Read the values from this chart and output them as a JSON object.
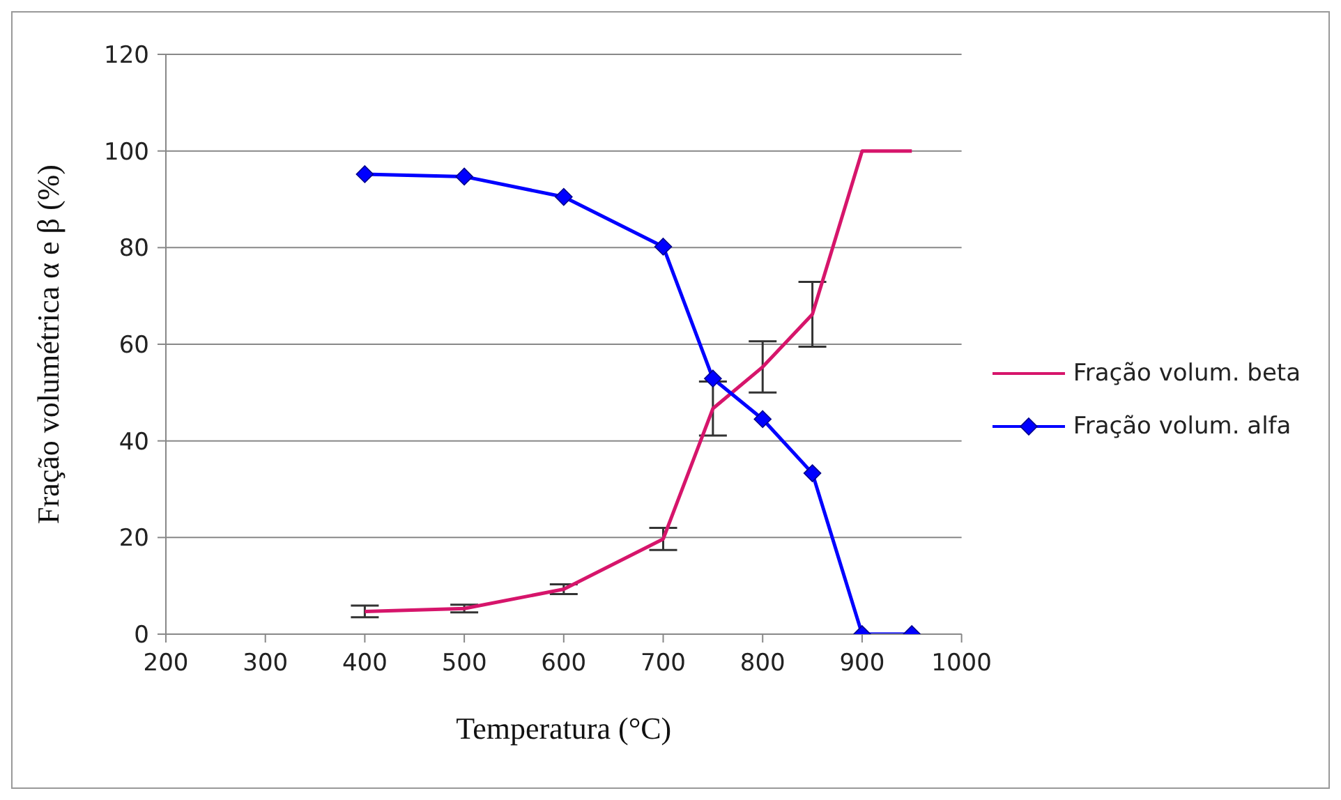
{
  "chart_data": {
    "type": "line",
    "xlabel": "Temperatura (°C)",
    "ylabel": "Fração volumétrica α e β (%)",
    "x": [
      400,
      500,
      600,
      700,
      750,
      800,
      850,
      900,
      950
    ],
    "series": [
      {
        "name": "Fração volum. beta",
        "color": "#d6156b",
        "marker": "none",
        "values": [
          4.7,
          5.3,
          9.3,
          19.7,
          46.7,
          55.3,
          66.2,
          100,
          100
        ],
        "errors": [
          1.2,
          0.8,
          1,
          2.3,
          5.6,
          5.3,
          6.7,
          null,
          null
        ]
      },
      {
        "name": "Fração volum. alfa",
        "color": "#0000ff",
        "marker": "diamond",
        "values": [
          95.2,
          94.7,
          90.5,
          80.2,
          52.9,
          44.5,
          33.3,
          0,
          0
        ]
      }
    ],
    "xlim": [
      200,
      1000
    ],
    "xticks": [
      200,
      300,
      400,
      500,
      600,
      700,
      800,
      900,
      1000
    ],
    "ylim": [
      0,
      120
    ],
    "yticks": [
      0,
      20,
      40,
      60,
      80,
      100,
      120
    ],
    "grid": "y",
    "legend": "right"
  }
}
